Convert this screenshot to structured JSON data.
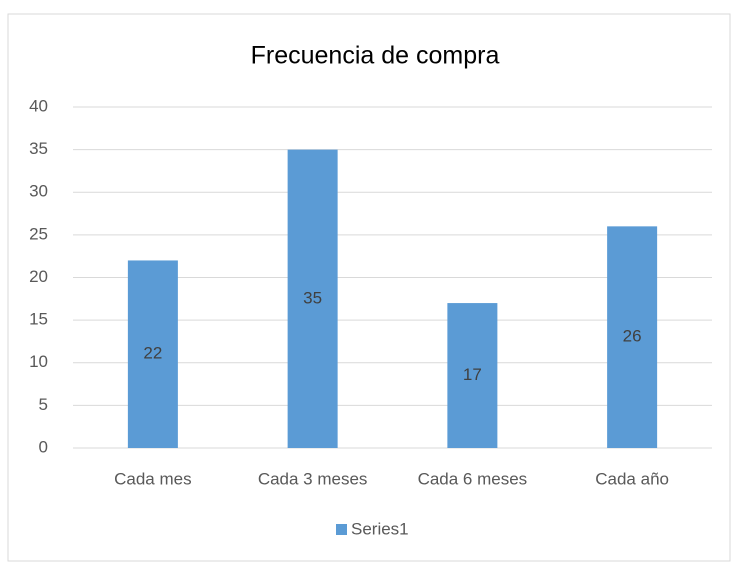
{
  "chart_data": {
    "type": "bar",
    "title": "Frecuencia de compra",
    "categories": [
      "Cada mes",
      "Cada 3 meses",
      "Cada 6 meses",
      "Cada año"
    ],
    "series": [
      {
        "name": "Series1",
        "color": "#5b9bd5",
        "values": [
          22,
          35,
          17,
          26
        ]
      }
    ],
    "ylim": [
      0,
      40
    ],
    "yticks": [
      0,
      5,
      10,
      15,
      20,
      25,
      30,
      35,
      40
    ],
    "grid": true,
    "legend": "bottom"
  }
}
